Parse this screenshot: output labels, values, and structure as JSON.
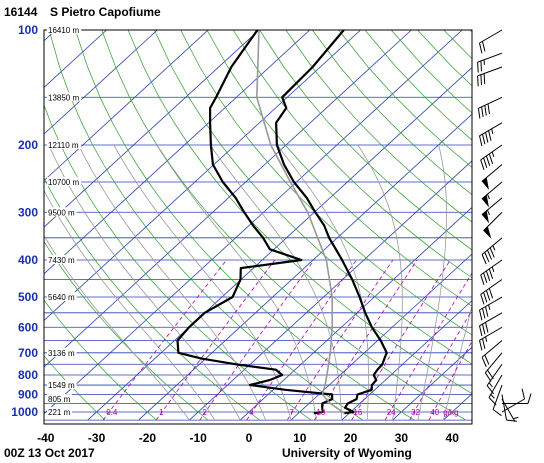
{
  "header": {
    "station_id": "16144",
    "station_name": "S Pietro Capofiume",
    "datetime": "00Z 13 Oct 2017",
    "source": "University of Wyoming"
  },
  "chart_data": {
    "type": "line",
    "diagram": "skew-t log-p",
    "pressure_axis": {
      "unit": "hPa",
      "range": [
        1050,
        100
      ],
      "scale": "log",
      "ticks": [
        100,
        200,
        300,
        400,
        500,
        600,
        700,
        800,
        900,
        1000
      ]
    },
    "temperature_axis": {
      "unit": "C",
      "range": [
        -40,
        40
      ],
      "ticks": [
        -40,
        -30,
        -20,
        -10,
        0,
        10,
        20,
        30,
        40
      ]
    },
    "height_labels": [
      {
        "p": 100,
        "text": "16410 m"
      },
      {
        "p": 150,
        "text": "13850 m"
      },
      {
        "p": 200,
        "text": "12110 m"
      },
      {
        "p": 250,
        "text": "10700 m"
      },
      {
        "p": 300,
        "text": "9500 m"
      },
      {
        "p": 400,
        "text": "7430 m"
      },
      {
        "p": 500,
        "text": "5640 m"
      },
      {
        "p": 700,
        "text": "3136 m"
      },
      {
        "p": 850,
        "text": "1549 m"
      },
      {
        "p": 925,
        "text": "805 m"
      },
      {
        "p": 1000,
        "text": "221 m"
      }
    ],
    "mixing_ratio_labels": [
      "0.4",
      "1",
      "2",
      "4",
      "7",
      "10",
      "16",
      "24",
      "32",
      "40",
      "g/kg"
    ],
    "series": [
      {
        "color": "#000000",
        "points": [
          [
            1007,
            19.0
          ],
          [
            1000,
            20.6
          ],
          [
            990,
            19.6
          ],
          [
            975,
            18.0
          ],
          [
            950,
            17.6
          ],
          [
            925,
            18.4
          ],
          [
            900,
            17.6
          ],
          [
            875,
            19.4
          ],
          [
            850,
            18.4
          ],
          [
            825,
            18.2
          ],
          [
            800,
            16.6
          ],
          [
            775,
            16.2
          ],
          [
            750,
            16.0
          ],
          [
            725,
            15.2
          ],
          [
            700,
            14.4
          ],
          [
            650,
            10.6
          ],
          [
            600,
            6.0
          ],
          [
            550,
            1.6
          ],
          [
            500,
            -2.9
          ],
          [
            450,
            -8.1
          ],
          [
            400,
            -14.3
          ],
          [
            375,
            -17.8
          ],
          [
            350,
            -21.6
          ],
          [
            325,
            -25.2
          ],
          [
            300,
            -29.8
          ],
          [
            275,
            -34.6
          ],
          [
            250,
            -40.5
          ],
          [
            225,
            -46.2
          ],
          [
            200,
            -51.8
          ],
          [
            175,
            -56.7
          ],
          [
            160,
            -57.9
          ],
          [
            150,
            -61.0
          ],
          [
            125,
            -61.5
          ],
          [
            100,
            -63.3
          ]
        ]
      },
      {
        "color": "#000000",
        "points": [
          [
            1007,
            13.0
          ],
          [
            1000,
            14.5
          ],
          [
            975,
            13.5
          ],
          [
            950,
            12.6
          ],
          [
            925,
            13.6
          ],
          [
            900,
            12.6
          ],
          [
            875,
            2.4
          ],
          [
            850,
            -5.6
          ],
          [
            825,
            -2.8
          ],
          [
            800,
            -1.4
          ],
          [
            775,
            -3.8
          ],
          [
            750,
            -12.8
          ],
          [
            725,
            -20.8
          ],
          [
            700,
            -26.6
          ],
          [
            650,
            -29.4
          ],
          [
            600,
            -30.0
          ],
          [
            550,
            -30.0
          ],
          [
            500,
            -27.9
          ],
          [
            450,
            -30.1
          ],
          [
            420,
            -32.5
          ],
          [
            400,
            -22.3
          ],
          [
            375,
            -30.8
          ],
          [
            350,
            -34.6
          ],
          [
            325,
            -39.2
          ],
          [
            300,
            -43.8
          ],
          [
            275,
            -48.6
          ],
          [
            250,
            -54.5
          ],
          [
            225,
            -60.2
          ],
          [
            200,
            -64.8
          ],
          [
            175,
            -69.7
          ],
          [
            160,
            -72.9
          ],
          [
            150,
            -74.0
          ],
          [
            125,
            -77.5
          ],
          [
            100,
            -80.3
          ]
        ]
      },
      {
        "color": "#999999",
        "points": [
          [
            1007,
            19.0
          ],
          [
            950,
            14.2
          ],
          [
            900,
            10.7
          ],
          [
            850,
            9.2
          ],
          [
            800,
            7.4
          ],
          [
            700,
            3.3
          ],
          [
            600,
            -1.8
          ],
          [
            500,
            -8.3
          ],
          [
            400,
            -17.4
          ],
          [
            300,
            -31.3
          ],
          [
            250,
            -41.2
          ],
          [
            200,
            -53.0
          ],
          [
            150,
            -66.0
          ],
          [
            100,
            -80.0
          ]
        ]
      }
    ],
    "wind_barbs": [
      {
        "p": 1000,
        "dir": 60,
        "spd": 10
      },
      {
        "p": 950,
        "dir": 90,
        "spd": 10
      },
      {
        "p": 925,
        "dir": 150,
        "spd": 5
      },
      {
        "p": 900,
        "dir": 170,
        "spd": 10
      },
      {
        "p": 850,
        "dir": 200,
        "spd": 10
      },
      {
        "p": 800,
        "dir": 210,
        "spd": 15
      },
      {
        "p": 750,
        "dir": 215,
        "spd": 15
      },
      {
        "p": 700,
        "dir": 220,
        "spd": 20
      },
      {
        "p": 650,
        "dir": 230,
        "spd": 20
      },
      {
        "p": 600,
        "dir": 240,
        "spd": 25
      },
      {
        "p": 550,
        "dir": 240,
        "spd": 30
      },
      {
        "p": 500,
        "dir": 240,
        "spd": 35
      },
      {
        "p": 450,
        "dir": 235,
        "spd": 40
      },
      {
        "p": 400,
        "dir": 235,
        "spd": 45
      },
      {
        "p": 350,
        "dir": 230,
        "spd": 45
      },
      {
        "p": 300,
        "dir": 225,
        "spd": 50
      },
      {
        "p": 275,
        "dir": 230,
        "spd": 55
      },
      {
        "p": 250,
        "dir": 230,
        "spd": 55
      },
      {
        "p": 225,
        "dir": 230,
        "spd": 50
      },
      {
        "p": 200,
        "dir": 235,
        "spd": 45
      },
      {
        "p": 175,
        "dir": 240,
        "spd": 45
      },
      {
        "p": 150,
        "dir": 245,
        "spd": 40
      },
      {
        "p": 125,
        "dir": 250,
        "spd": 30
      },
      {
        "p": 115,
        "dir": 250,
        "spd": 25
      },
      {
        "p": 100,
        "dir": 240,
        "spd": 20
      }
    ]
  }
}
